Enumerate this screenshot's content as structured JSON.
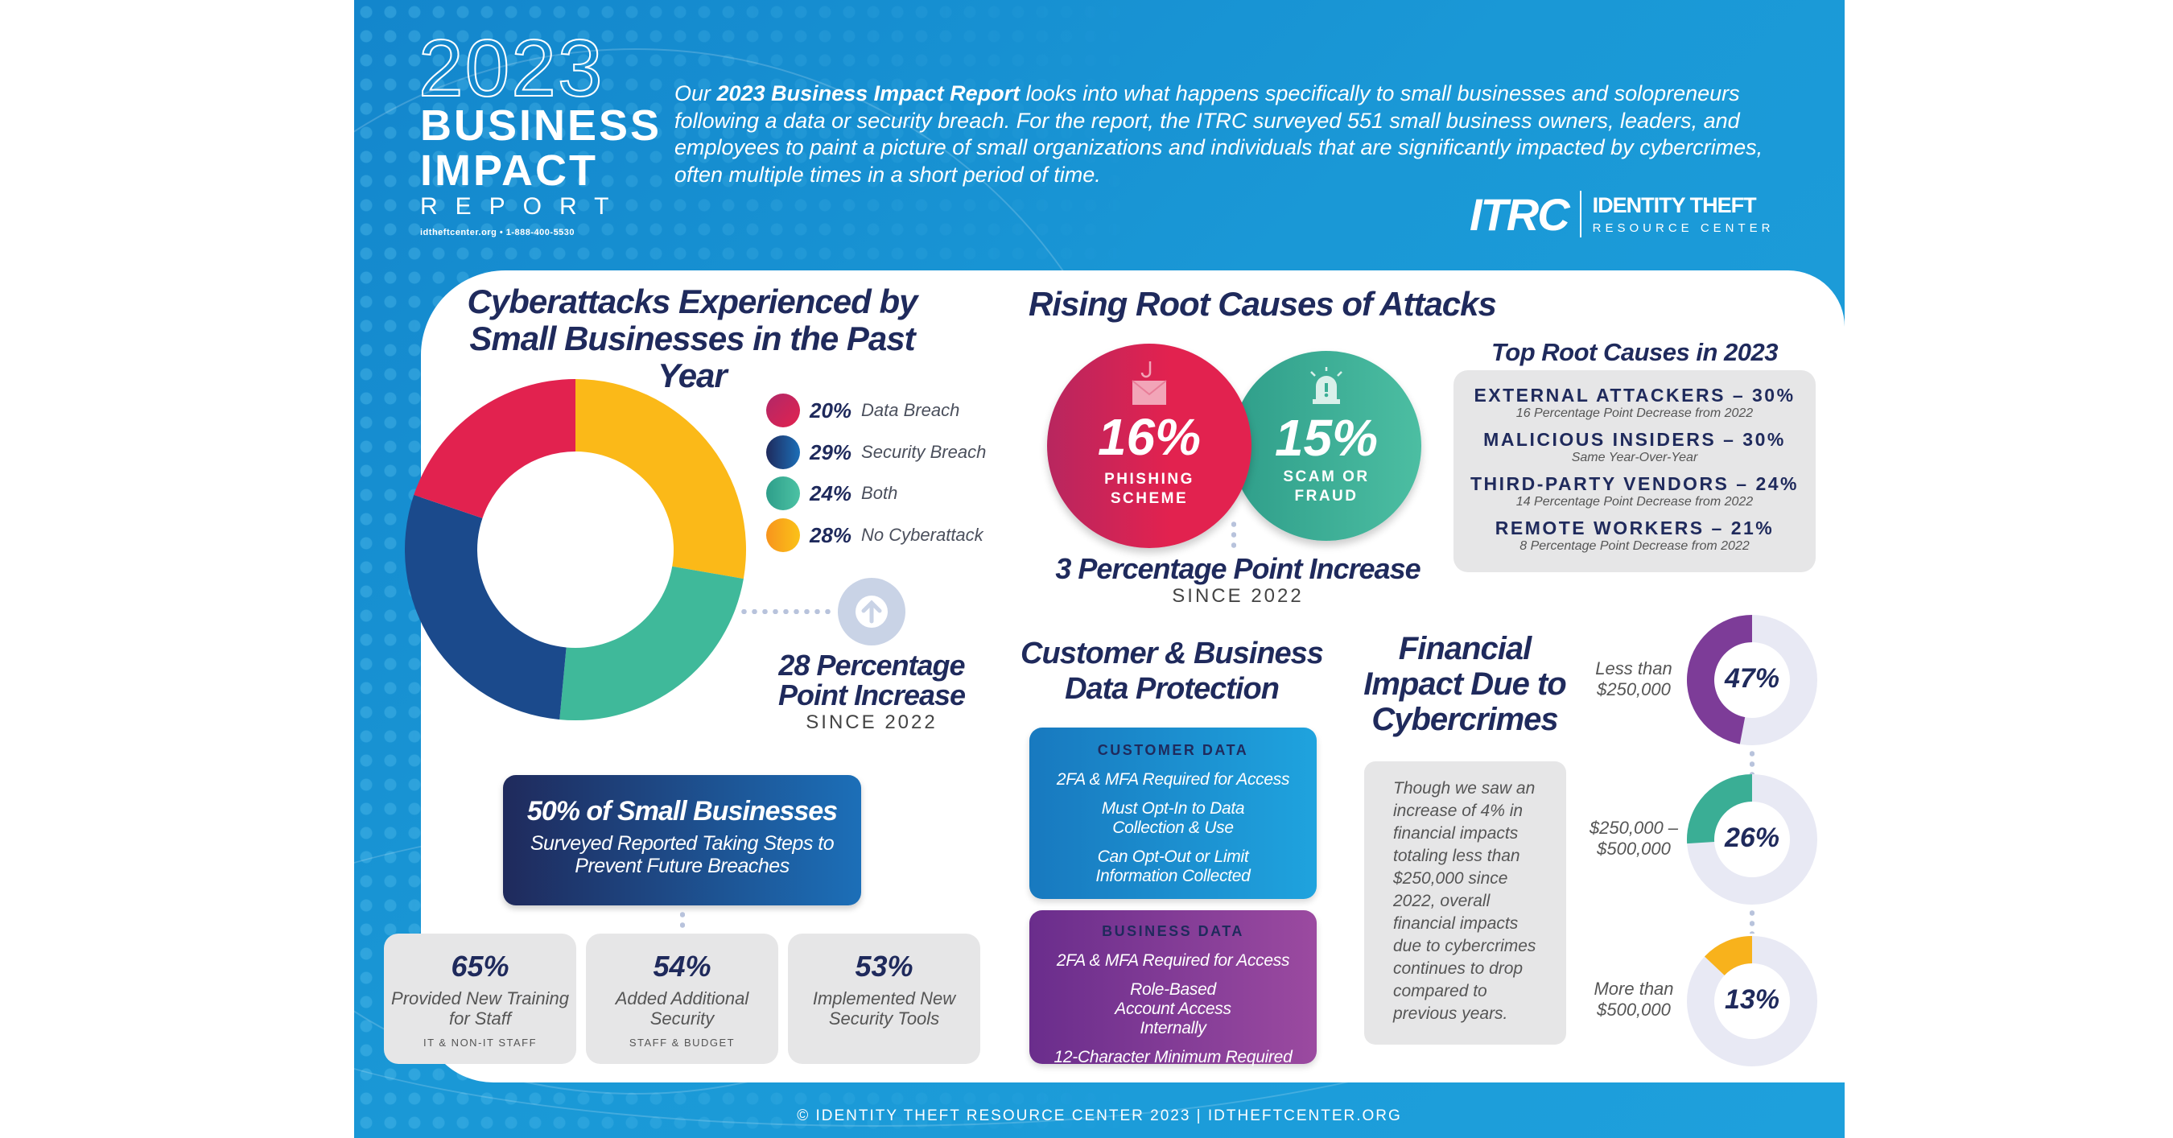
{
  "header": {
    "logo_year": "2023",
    "logo_line1": "BUSINESS",
    "logo_line2": "IMPACT",
    "logo_line3": "REPORT",
    "logo_contact": "idtheftcenter.org  •  1-888-400-5530",
    "intro_prefix": "Our ",
    "intro_bold": "2023 Business Impact Report",
    "intro_rest": " looks into what happens specifically to small businesses and solopreneurs following a data or security breach. For the report, the ITRC surveyed 551 small business owners, leaders, and employees to paint a picture of small organizations and individuals that are significantly impacted by cybercrimes, often multiple times in a short period of time.",
    "org_logo_mark": "ITRC",
    "org_name_line1": "IDENTITY THEFT",
    "org_name_line2": "RESOURCE CENTER"
  },
  "cyberattacks": {
    "title": "Cyberattacks Experienced by Small Businesses in the Past Year",
    "legend": [
      {
        "pct": "20%",
        "label": "Data Breach"
      },
      {
        "pct": "29%",
        "label": "Security Breach"
      },
      {
        "pct": "24%",
        "label": "Both"
      },
      {
        "pct": "28%",
        "label": "No Cyberattack"
      }
    ],
    "increase_icon": "arrow-up-circle-icon",
    "increase_line1": "28 Percentage",
    "increase_line2": "Point Increase",
    "increase_since": "SINCE 2022"
  },
  "prevention": {
    "headline": "50% of Small Businesses",
    "subtext": "Surveyed Reported Taking Steps to Prevent Future Breaches",
    "steps": [
      {
        "pct": "65%",
        "desc": "Provided New Training for Staff",
        "sub": "IT & NON-IT STAFF"
      },
      {
        "pct": "54%",
        "desc": "Added Additional Security",
        "sub": "STAFF & BUDGET"
      },
      {
        "pct": "53%",
        "desc": "Implemented New Security Tools",
        "sub": ""
      }
    ]
  },
  "root_causes": {
    "title": "Rising Root Causes of Attacks",
    "phishing": {
      "pct": "16%",
      "label1": "PHISHING",
      "label2": "SCHEME",
      "icon": "phishing-envelope-icon",
      "color": "#e2224f"
    },
    "scam": {
      "pct": "15%",
      "label1": "SCAM OR",
      "label2": "FRAUD",
      "icon": "alarm-siren-icon",
      "color": "#3aae95"
    },
    "increase": "3 Percentage Point Increase",
    "since": "SINCE 2022",
    "top_title": "Top Root Causes in 2023",
    "top": [
      {
        "cause": "EXTERNAL ATTACKERS – 30%",
        "note": "16 Percentage Point Decrease from 2022"
      },
      {
        "cause": "MALICIOUS INSIDERS – 30%",
        "note": "Same Year-Over-Year"
      },
      {
        "cause": "THIRD-PARTY VENDORS – 24%",
        "note": "14 Percentage Point Decrease from 2022"
      },
      {
        "cause": "REMOTE WORKERS – 21%",
        "note": "8 Percentage Point Decrease from 2022"
      }
    ]
  },
  "protection": {
    "title_line1": "Customer & Business",
    "title_line2": "Data Protection",
    "customer": {
      "heading": "CUSTOMER DATA",
      "items": [
        "2FA & MFA Required for Access",
        "Must Opt-In to Data Collection & Use",
        "Can Opt-Out or Limit Information Collected"
      ]
    },
    "business": {
      "heading": "BUSINESS DATA",
      "items": [
        "2FA & MFA Required for Access",
        "Role-Based Account Access Internally",
        "12-Character Minimum Required"
      ]
    }
  },
  "financial": {
    "title_line1": "Financial",
    "title_line2": "Impact Due to",
    "title_line3": "Cybercrimes",
    "note": "Though we saw an increase of 4% in financial impacts totaling less than $250,000 since 2022, overall financial impacts due to cybercrimes continues to drop compared to previous years.",
    "rings": [
      {
        "label1": "Less than",
        "label2": "$250,000",
        "pct": "47%"
      },
      {
        "label1": "$250,000 –",
        "label2": "$500,000",
        "pct": "26%"
      },
      {
        "label1": "More than",
        "label2": "$500,000",
        "pct": "13%"
      }
    ]
  },
  "footer": "© IDENTITY THEFT RESOURCE CENTER 2023  |  IDTHEFTCENTER.ORG",
  "chart_data": [
    {
      "type": "pie",
      "title": "Cyberattacks Experienced by Small Businesses in the Past Year",
      "donut": true,
      "categories": [
        "No Cyberattack",
        "Both",
        "Security Breach",
        "Data Breach"
      ],
      "values": [
        28,
        24,
        29,
        20
      ],
      "colors": [
        "#fbb918",
        "#3fb99a",
        "#1b4a8c",
        "#e2224f"
      ],
      "legend": "right"
    },
    {
      "type": "pie",
      "donut": true,
      "categories": [
        "Less than $250,000",
        "$250,000 – $500,000",
        "More than $500,000"
      ],
      "values": [
        47,
        26,
        13
      ],
      "colors": [
        "#7d3c98",
        "#3aae95",
        "#f8b21c"
      ],
      "track_color": "#e8e9f4"
    }
  ]
}
